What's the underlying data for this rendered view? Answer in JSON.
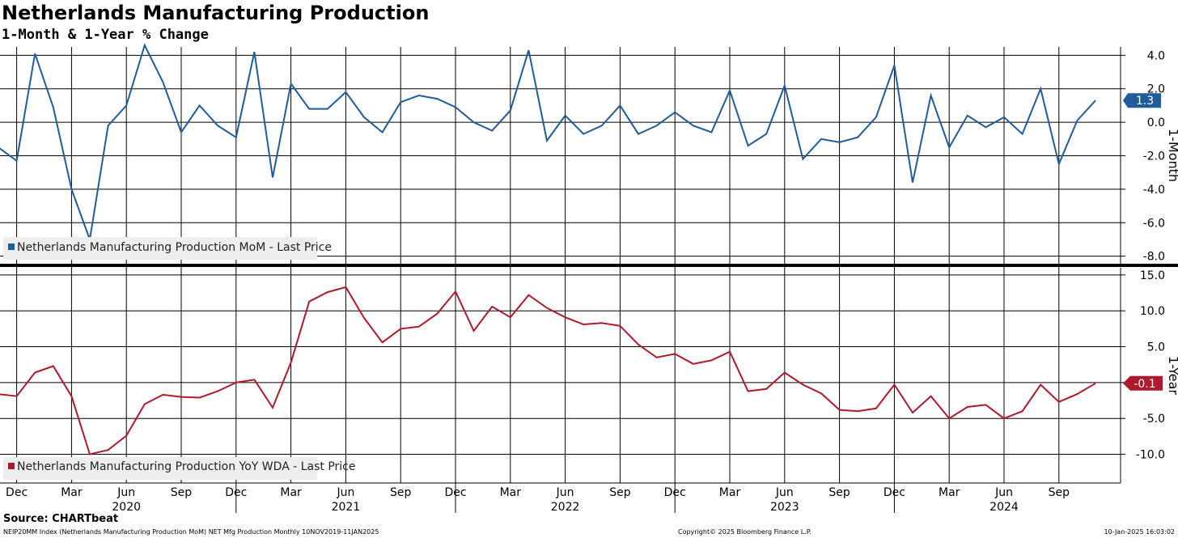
{
  "title": "Netherlands Manufacturing Production",
  "subtitle": "1-Month & 1-Year % Change",
  "source": "Source: CHARTbeat",
  "footer": {
    "left": "NEIP20MM Index (Netherlands Manufacturing Production MoM) NET Mfg Production  Monthly 10NOV2019-11JAN2025",
    "middle": "Copyright© 2025 Bloomberg Finance L.P.",
    "right": "10-Jan-2025 16:03:02"
  },
  "colors": {
    "mom": "#1f5c99",
    "yoy": "#b0192b",
    "grid": "#000000",
    "legend_bg": "#eeeeee"
  },
  "chart_data": [
    {
      "type": "line",
      "axis_label": "1-Month",
      "legend": "Netherlands Manufacturing Production MoM - Last Price",
      "last_value_label": "1.3",
      "ylim": [
        -8.5,
        4.5
      ],
      "yticks": [
        4.0,
        2.0,
        0.0,
        -2.0,
        -4.0,
        -6.0,
        -8.0
      ],
      "ytick_labels": [
        "4.0",
        "2.0",
        "0.0",
        "-2.0",
        "-4.0",
        "-6.0",
        "-8.0"
      ],
      "start": "2019-11",
      "values": [
        -1.5,
        -2.3,
        4.1,
        0.9,
        -4.0,
        -7.0,
        -0.2,
        1.0,
        4.6,
        2.4,
        -0.6,
        1.0,
        -0.2,
        -0.9,
        4.2,
        -3.3,
        2.3,
        0.8,
        0.8,
        1.8,
        0.3,
        -0.6,
        1.2,
        1.6,
        1.4,
        0.9,
        0.0,
        -0.5,
        0.7,
        4.3,
        -1.1,
        0.4,
        -0.7,
        -0.2,
        1.0,
        -0.7,
        -0.2,
        0.6,
        -0.2,
        -0.6,
        1.9,
        -1.4,
        -0.7,
        2.2,
        -2.2,
        -1.0,
        -1.2,
        -0.9,
        0.3,
        3.4,
        -3.6,
        1.6,
        -1.5,
        0.4,
        -0.3,
        0.3,
        -0.7,
        2.0,
        -2.5,
        0.1,
        1.3
      ]
    },
    {
      "type": "line",
      "axis_label": "1-Year",
      "legend": "Netherlands Manufacturing Production YoY WDA - Last Price",
      "last_value_label": "-0.1",
      "ylim": [
        -14,
        16
      ],
      "yticks": [
        15,
        10,
        5,
        0,
        -5,
        -10
      ],
      "ytick_labels": [
        "15.0",
        "10.0",
        "5.0",
        "",
        "-5.0",
        "-10.0"
      ],
      "start": "2019-11",
      "values": [
        -1.6,
        -1.9,
        1.4,
        2.3,
        -1.9,
        -10.0,
        -9.4,
        -7.4,
        -3.0,
        -1.7,
        -2.0,
        -2.1,
        -1.2,
        0.0,
        0.4,
        -3.5,
        2.8,
        11.3,
        12.6,
        13.3,
        9.0,
        5.6,
        7.5,
        7.8,
        9.6,
        12.7,
        7.2,
        10.6,
        9.1,
        12.2,
        10.4,
        9.1,
        8.1,
        8.3,
        7.9,
        5.3,
        3.5,
        4.0,
        2.6,
        3.1,
        4.3,
        -1.2,
        -0.9,
        1.4,
        -0.3,
        -1.5,
        -3.8,
        -4.0,
        -3.6,
        -0.3,
        -4.2,
        -1.9,
        -5.0,
        -3.4,
        -3.1,
        -5.0,
        -4.0,
        -0.3,
        -2.7,
        -1.6,
        -0.1
      ]
    }
  ],
  "x_axis": {
    "month_labels": [
      {
        "index": 1,
        "label": "Dec"
      },
      {
        "index": 4,
        "label": "Mar"
      },
      {
        "index": 7,
        "label": "Jun"
      },
      {
        "index": 10,
        "label": "Sep"
      },
      {
        "index": 13,
        "label": "Dec"
      },
      {
        "index": 16,
        "label": "Mar"
      },
      {
        "index": 19,
        "label": "Jun"
      },
      {
        "index": 22,
        "label": "Sep"
      },
      {
        "index": 25,
        "label": "Dec"
      },
      {
        "index": 28,
        "label": "Mar"
      },
      {
        "index": 31,
        "label": "Jun"
      },
      {
        "index": 34,
        "label": "Sep"
      },
      {
        "index": 37,
        "label": "Dec"
      },
      {
        "index": 40,
        "label": "Mar"
      },
      {
        "index": 43,
        "label": "Jun"
      },
      {
        "index": 46,
        "label": "Sep"
      },
      {
        "index": 49,
        "label": "Dec"
      },
      {
        "index": 52,
        "label": "Mar"
      },
      {
        "index": 55,
        "label": "Jun"
      },
      {
        "index": 58,
        "label": "Sep"
      }
    ],
    "year_labels": [
      {
        "center": 7,
        "label": "2020"
      },
      {
        "center": 19,
        "label": "2021"
      },
      {
        "center": 31,
        "label": "2022"
      },
      {
        "center": 43,
        "label": "2023"
      },
      {
        "center": 55,
        "label": "2024"
      }
    ],
    "year_boundaries": [
      13,
      25,
      37,
      49
    ]
  }
}
